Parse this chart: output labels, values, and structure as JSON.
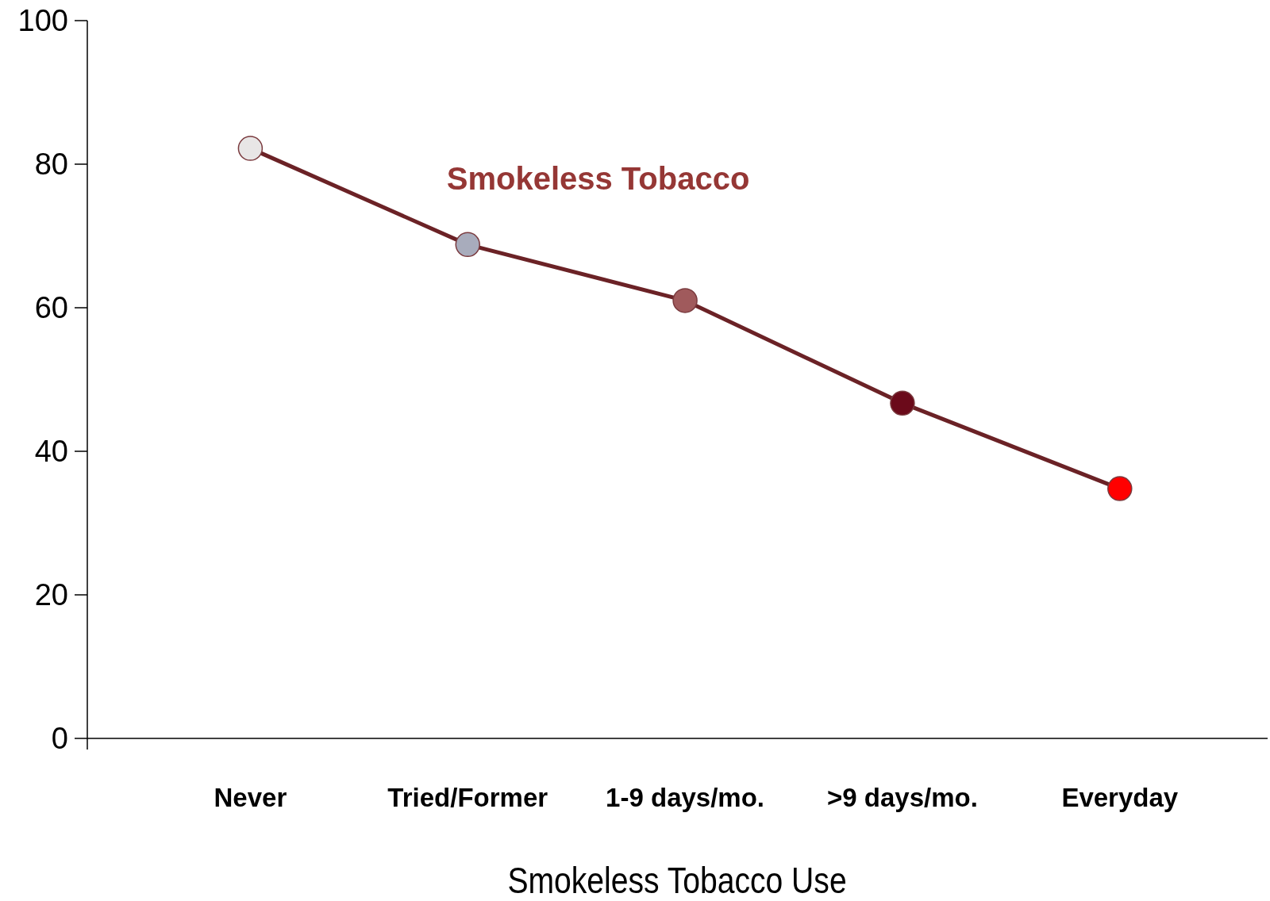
{
  "chart_data": {
    "type": "line",
    "xlabel": "Smokeless Tobacco Use",
    "categories": [
      "Never",
      "Tried/Former",
      "1-9 days/mo.",
      ">9 days/mo.",
      "Everyday"
    ],
    "series": [
      {
        "name": "Smokeless Tobacco",
        "color": "#6b2226",
        "colors": [
          "#e8e6e6",
          "#a8acbc",
          "#a05a5c",
          "#6b0a1a",
          "#ff0000"
        ],
        "values": [
          82.2,
          68.8,
          61.0,
          46.7,
          34.8
        ]
      }
    ],
    "ylim": [
      0,
      100
    ],
    "yticks": [
      0,
      20,
      40,
      60,
      80,
      100
    ],
    "grid": false,
    "marker": "circle",
    "line_style": "solid"
  }
}
